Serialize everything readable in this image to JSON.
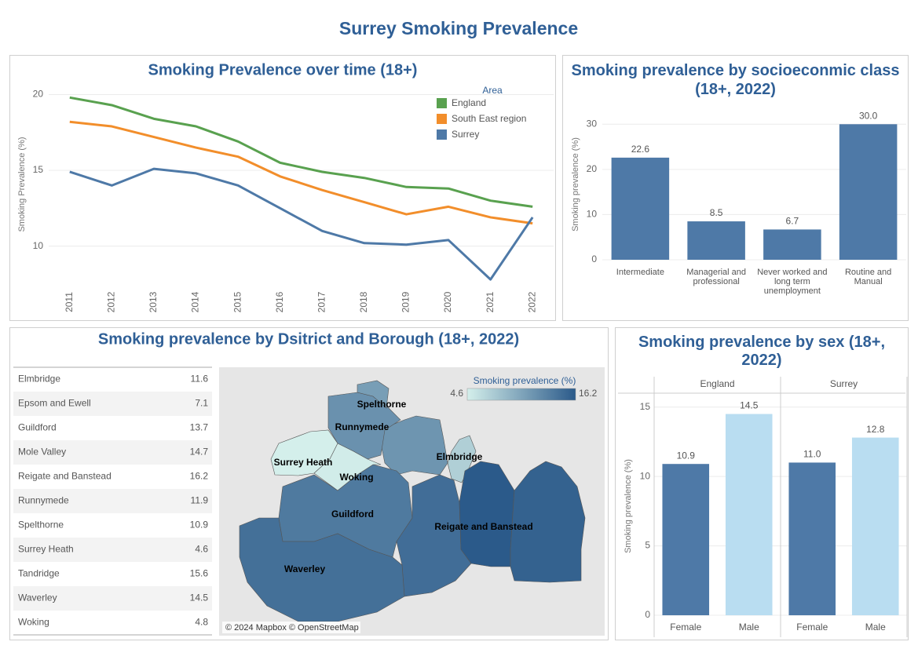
{
  "title": "Surrey Smoking Prevalence",
  "chart_data": [
    {
      "type": "line",
      "title": "Smoking Prevalence over time (18+)",
      "y_label": "Smoking Prevalence (%)",
      "legend_title": "Area",
      "legend": "upper right",
      "grid": true,
      "categories": [
        "2011",
        "2012",
        "2013",
        "2014",
        "2015",
        "2016",
        "2017",
        "2018",
        "2019",
        "2020",
        "2021",
        "2022"
      ],
      "series": [
        {
          "name": "England",
          "color": "#59a14f",
          "values": [
            19.8,
            19.3,
            18.4,
            17.9,
            16.9,
            15.5,
            14.9,
            14.5,
            13.9,
            13.8,
            13.0,
            12.6
          ]
        },
        {
          "name": "South East region",
          "color": "#f28e2b",
          "values": [
            18.2,
            17.9,
            17.2,
            16.5,
            15.9,
            14.6,
            13.7,
            12.9,
            12.1,
            12.6,
            11.9,
            11.5
          ]
        },
        {
          "name": "Surrey",
          "color": "#4e79a7",
          "values": [
            14.9,
            14.0,
            15.1,
            14.8,
            14.0,
            12.5,
            11.0,
            10.2,
            10.1,
            10.4,
            7.8,
            11.9
          ]
        }
      ],
      "ylim": [
        7.6,
        20.8
      ],
      "yticks": [
        10,
        15,
        20
      ]
    },
    {
      "type": "bar",
      "title": "Smoking prevalence by socioeconmic class (18+, 2022)",
      "y_label": "Smoking prevalence (%)",
      "categories": [
        "Intermediate",
        "Managerial and professional",
        "Never worked and long term unemployment",
        "Routine and Manual"
      ],
      "values": [
        22.6,
        8.5,
        6.7,
        30.0
      ],
      "value_labels": [
        "22.6",
        "8.5",
        "6.7",
        "30.0"
      ],
      "color": "#4e79a7",
      "grid": true,
      "ylim": [
        0,
        33
      ],
      "yticks": [
        0,
        10,
        20,
        30
      ]
    },
    {
      "type": "choropleth",
      "title": "Smoking prevalence by Dsitrict and Borough (18+, 2022)",
      "categories": [
        "Elmbridge",
        "Epsom and Ewell",
        "Guildford",
        "Mole Valley",
        "Reigate and Banstead",
        "Runnymede",
        "Spelthorne",
        "Surrey Heath",
        "Tandridge",
        "Waverley",
        "Woking"
      ],
      "values": [
        11.6,
        7.1,
        13.7,
        14.7,
        16.2,
        11.9,
        10.9,
        4.6,
        15.6,
        14.5,
        4.8
      ],
      "legend_title": "Smoking prevalence (%)",
      "colorlim": [
        4.6,
        16.2
      ],
      "colors": [
        "#d4efeb",
        "#2b5a8a"
      ],
      "attribution": "© 2024 Mapbox © OpenStreetMap"
    },
    {
      "type": "faceted_bar",
      "title": "Smoking prevalence by sex (18+, 2022)",
      "y_label": "Smoking prevalence (%)",
      "groups": [
        "England",
        "Surrey"
      ],
      "categories": [
        "Female",
        "Male"
      ],
      "colors": [
        "#4e79a7",
        "#b9ddf1"
      ],
      "values": [
        [
          10.9,
          14.5
        ],
        [
          11.0,
          12.8
        ]
      ],
      "value_labels": [
        [
          "10.9",
          "14.5"
        ],
        [
          "11.0",
          "12.8"
        ]
      ],
      "grid": true,
      "ylim": [
        0,
        16
      ],
      "yticks": [
        0,
        5,
        10,
        15
      ]
    }
  ]
}
